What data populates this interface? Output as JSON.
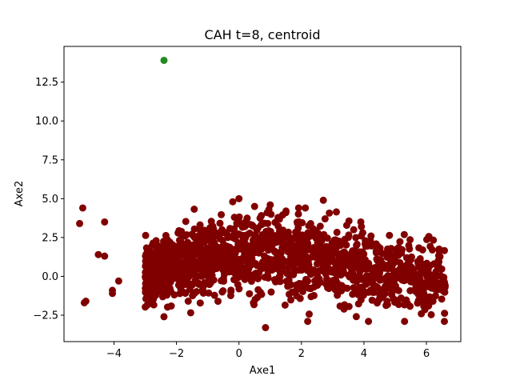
{
  "chart_data": {
    "type": "scatter",
    "title": "CAH t=8, centroid",
    "xlabel": "Axe1",
    "ylabel": "Axe2",
    "xlim": [
      -5.6,
      7.1
    ],
    "ylim": [
      -4.2,
      14.8
    ],
    "xticks": [
      -4,
      -2,
      0,
      2,
      4,
      6
    ],
    "xtick_labels": [
      "−4",
      "−2",
      "0",
      "2",
      "4",
      "6"
    ],
    "yticks": [
      -2.5,
      0.0,
      2.5,
      5.0,
      7.5,
      10.0,
      12.5
    ],
    "ytick_labels": [
      "−2.5",
      "0.0",
      "2.5",
      "5.0",
      "7.5",
      "10.0",
      "12.5"
    ],
    "grid": false,
    "series": [
      {
        "color": "#800000",
        "cloud": {
          "approx_count": 1500,
          "x_range": [
            -3.0,
            6.6
          ],
          "y_range": [
            -3.3,
            5.0
          ],
          "seed": 42
        },
        "points": [
          [
            -5.1,
            3.4
          ],
          [
            -5.0,
            4.4
          ],
          [
            -4.3,
            3.5
          ],
          [
            -4.95,
            -1.7
          ],
          [
            -4.9,
            -1.6
          ],
          [
            -4.5,
            1.4
          ],
          [
            -4.3,
            1.3
          ],
          [
            -4.05,
            -0.9
          ],
          [
            -4.05,
            -1.1
          ],
          [
            -3.85,
            -0.3
          ],
          [
            -0.2,
            4.8
          ],
          [
            0.0,
            5.0
          ],
          [
            0.5,
            4.5
          ],
          [
            1.0,
            4.6
          ],
          [
            1.5,
            4.1
          ],
          [
            2.7,
            4.9
          ],
          [
            0.85,
            -3.3
          ],
          [
            2.2,
            -2.9
          ],
          [
            5.3,
            -2.9
          ],
          [
            6.6,
            -0.6
          ],
          [
            6.2,
            -1.4
          ],
          [
            5.9,
            -0.5
          ],
          [
            5.4,
            0.8
          ],
          [
            5.2,
            1.5
          ],
          [
            3.5,
            2.5
          ],
          [
            3.9,
            3.5
          ],
          [
            -2.4,
            -2.6
          ]
        ]
      },
      {
        "color": "#228b22",
        "points": [
          [
            -2.4,
            13.9
          ]
        ]
      }
    ]
  }
}
